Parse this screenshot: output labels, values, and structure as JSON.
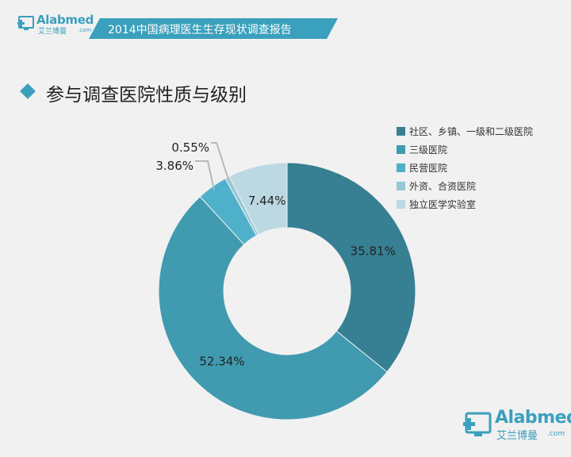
{
  "header": {
    "brand": "Alabmed",
    "brand_cn": "艾兰博曼",
    "brand_com": ".com",
    "report_title": "2014中国病理医生生存现状调查报告"
  },
  "section": {
    "title": "参与调查医院性质与级别"
  },
  "colors": {
    "accent": "#3aa0bd",
    "banner": "#3aa0bd"
  },
  "chart_data": {
    "type": "pie",
    "donut": true,
    "categories": [
      "社区、乡镇、一级和二级医院",
      "三级医院",
      "民营医院",
      "外资、合资医院",
      "独立医学实验室"
    ],
    "values": [
      35.81,
      52.34,
      3.86,
      0.55,
      7.44
    ],
    "labels": [
      "35.81%",
      "52.34%",
      "3.86%",
      "0.55%",
      "7.44%"
    ],
    "colors": [
      "#377f92",
      "#409bb0",
      "#4fb1c9",
      "#94c7d6",
      "#bcd8e3"
    ],
    "legend_position": "right"
  },
  "footer": {
    "brand": "Alabmed",
    "brand_cn": "艾兰博曼",
    "brand_com": ".com"
  }
}
